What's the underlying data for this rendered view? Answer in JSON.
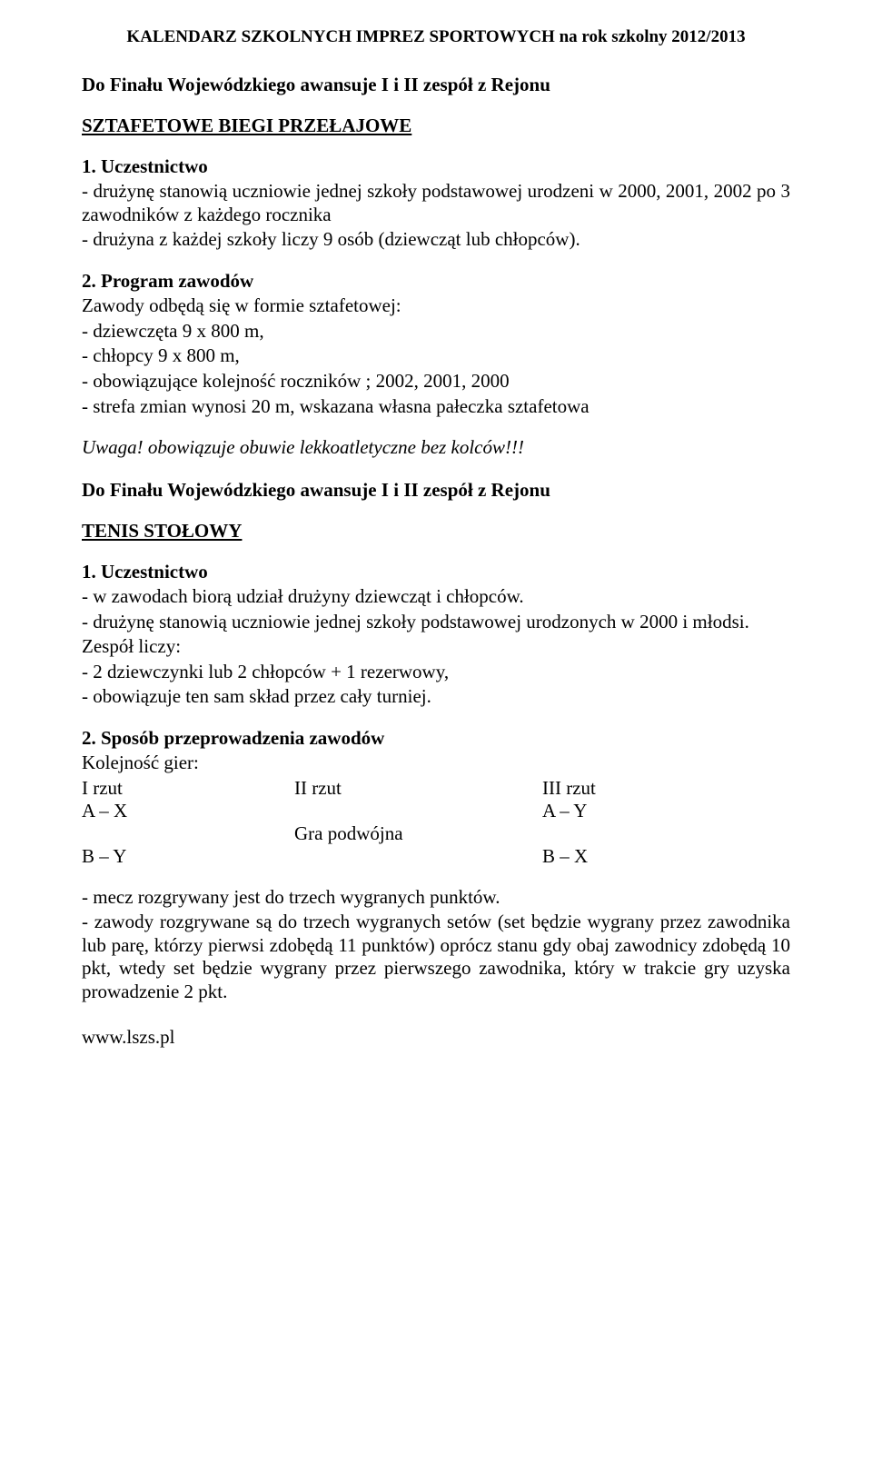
{
  "header": "KALENDARZ  SZKOLNYCH IMPREZ SPORTOWYCH na rok szkolny 2012/2013",
  "line_advance_1": "Do Finału Wojewódzkiego awansuje I i II zespół z Rejonu",
  "section1_title": "SZTAFETOWE BIEGI PRZEŁAJOWE",
  "s1_p1_head": "1.   Uczestnictwo",
  "s1_p1_body": "- drużynę stanowią uczniowie jednej szkoły podstawowej urodzeni w 2000, 2001, 2002 po 3 zawodników z każdego rocznika",
  "s1_p1_body2": "- drużyna z każdej szkoły liczy 9 osób (dziewcząt lub chłopców).",
  "s1_p2_head": "2.   Program zawodów",
  "s1_p2_l1": "Zawody odbędą się w formie sztafetowej:",
  "s1_p2_l2": "- dziewczęta 9 x 800 m,",
  "s1_p2_l3": "- chłopcy      9 x 800 m,",
  "s1_p2_l4": "- obowiązujące kolejność roczników ; 2002, 2001, 2000",
  "s1_p2_l5": "-     strefa zmian wynosi 20 m, wskazana własna pałeczka sztafetowa",
  "s1_uwaga": "Uwaga!  obowiązuje obuwie lekkoatletyczne bez kolców!!!",
  "line_advance_2": "Do Finału Wojewódzkiego awansuje I i II zespół z Rejonu",
  "section2_title": "TENIS STOŁOWY",
  "s2_p1_head": "1.   Uczestnictwo",
  "s2_p1_l1": "- w zawodach biorą udział drużyny dziewcząt i chłopców.",
  "s2_p1_l2": "- drużynę stanowią uczniowie jednej szkoły podstawowej urodzonych w 2000 i młodsi.",
  "s2_p1_l3": "Zespół liczy:",
  "s2_p1_l4": "- 2 dziewczynki lub 2 chłopców + 1 rezerwowy,",
  "s2_p1_l5": "- obowiązuje ten sam skład przez cały turniej.",
  "s2_p2_head": "2.    Sposób przeprowadzenia zawodów",
  "s2_p2_l1": "Kolejność gier:",
  "rzut": {
    "h1": " I rzut",
    "h2": "II rzut",
    "h3": "III rzut",
    "r1c1": "A – X",
    "r1c3": "A – Y",
    "r2c2": "Gra podwójna",
    "r3c1": "B – Y",
    "r3c3": "B – X"
  },
  "s2_end_l1": "- mecz rozgrywany jest do trzech wygranych punktów.",
  "s2_end_l2": "- zawody rozgrywane są do trzech wygranych setów (set będzie wygrany przez zawodnika lub parę, którzy pierwsi zdobędą 11 punktów) oprócz stanu gdy obaj zawodnicy zdobędą 10 pkt, wtedy set będzie wygrany przez pierwszego zawodnika, który w trakcie gry uzyska prowadzenie 2 pkt.",
  "footer": "www.lszs.pl"
}
